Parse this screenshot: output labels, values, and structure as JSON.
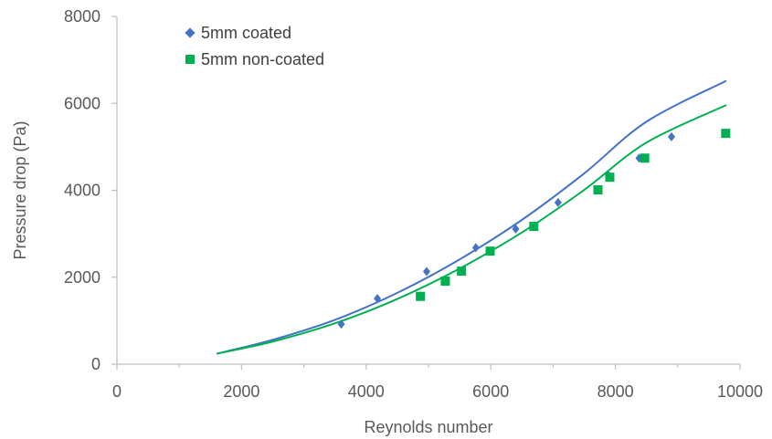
{
  "chart_data": {
    "type": "scatter",
    "title": "",
    "xlabel": "Reynolds number",
    "ylabel": "Pressure drop (Pa)",
    "xlim": [
      0,
      10000
    ],
    "ylim": [
      0,
      8000
    ],
    "x_ticks": [
      0,
      2000,
      4000,
      6000,
      8000,
      10000
    ],
    "y_ticks": [
      0,
      2000,
      4000,
      6000,
      8000
    ],
    "x_tick_labels": [
      "0",
      "2000",
      "4000",
      "6000",
      "8000",
      "10000"
    ],
    "y_tick_labels": [
      "0",
      "2000",
      "4000",
      "6000",
      "8000"
    ],
    "grid": false,
    "legend_position": "top-left",
    "series": [
      {
        "name": "5mm coated",
        "marker": "diamond",
        "color": "#4472C4",
        "points": [
          [
            3600,
            920
          ],
          [
            4180,
            1510
          ],
          [
            4970,
            2130
          ],
          [
            5760,
            2680
          ],
          [
            6400,
            3110
          ],
          [
            7080,
            3720
          ],
          [
            7890,
            4340
          ],
          [
            8380,
            4740
          ],
          [
            8900,
            5230
          ]
        ],
        "trendline": {
          "x": [
            1600,
            2500,
            3500,
            4500,
            5500,
            6500,
            7500,
            8500,
            9780
          ],
          "y": [
            240,
            560,
            1020,
            1640,
            2410,
            3320,
            4390,
            5580,
            6520
          ]
        }
      },
      {
        "name": "5mm non-coated",
        "marker": "square",
        "color": "#00B050",
        "points": [
          [
            4870,
            1560
          ],
          [
            5270,
            1910
          ],
          [
            5530,
            2140
          ],
          [
            5990,
            2600
          ],
          [
            6690,
            3170
          ],
          [
            7720,
            4010
          ],
          [
            7910,
            4300
          ],
          [
            8470,
            4740
          ],
          [
            9770,
            5310
          ]
        ],
        "trendline": {
          "x": [
            1600,
            2500,
            3500,
            4500,
            5500,
            6500,
            7500,
            8500,
            9780
          ],
          "y": [
            240,
            520,
            940,
            1500,
            2200,
            3030,
            4010,
            5100,
            5960
          ]
        }
      }
    ]
  }
}
